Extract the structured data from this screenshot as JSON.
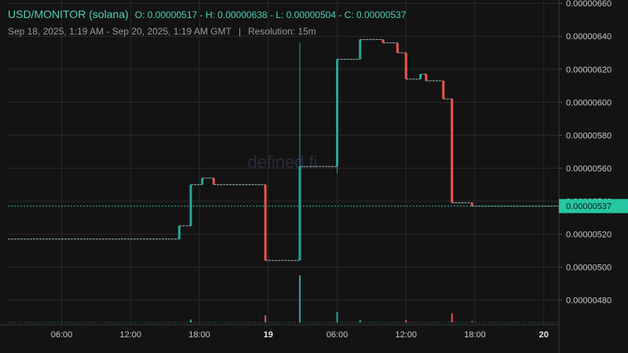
{
  "header": {
    "symbol": "USD/MONITOR (solana)",
    "ohlc": "O: 0.00000517 - H: 0.00000638 - L: 0.00000504 - C: 0.00000537",
    "range": "Sep 18, 2025, 1:19 AM - Sep 20, 2025, 1:19 AM GMT",
    "separator": "|",
    "resolution": "Resolution: 15m"
  },
  "watermark": "defined.fi",
  "colors": {
    "background": "#131313",
    "up": "#26a69a",
    "down": "#ef5350",
    "grid": "#2a2a2a",
    "price_tag": "#26c6a2"
  },
  "chart_data": {
    "type": "candlestick",
    "y_axis_side": "right",
    "ylim": [
      4.65e-06,
      6.62e-06
    ],
    "y_ticks": [
      {
        "v": 6.6e-06,
        "label": "0.00000660"
      },
      {
        "v": 6.4e-06,
        "label": "0.00000640"
      },
      {
        "v": 6.2e-06,
        "label": "0.00000620"
      },
      {
        "v": 6e-06,
        "label": "0.00000600"
      },
      {
        "v": 5.8e-06,
        "label": "0.00000580"
      },
      {
        "v": 5.6e-06,
        "label": "0.00000560"
      },
      {
        "v": 5.4e-06,
        "label": "0.00000540"
      },
      {
        "v": 5.2e-06,
        "label": "0.00000520"
      },
      {
        "v": 5e-06,
        "label": "0.00000500"
      },
      {
        "v": 4.8e-06,
        "label": "0.00000480"
      }
    ],
    "x_range_hours": [
      1.3167,
      49.3167
    ],
    "x_ticks": [
      {
        "h": 6,
        "label": "06:00",
        "bold": false
      },
      {
        "h": 12,
        "label": "12:00",
        "bold": false
      },
      {
        "h": 18,
        "label": "18:00",
        "bold": false
      },
      {
        "h": 24,
        "label": "19",
        "bold": true
      },
      {
        "h": 30,
        "label": "06:00",
        "bold": false
      },
      {
        "h": 36,
        "label": "12:00",
        "bold": false
      },
      {
        "h": 42,
        "label": "18:00",
        "bold": false
      },
      {
        "h": 48,
        "label": "20",
        "bold": true
      }
    ],
    "current_price": {
      "value": 5.37e-06,
      "label": "0.00000537"
    },
    "segments": [
      {
        "h0": 1.3167,
        "h1": 16.25,
        "price": 5.17e-06
      },
      {
        "h0": 16.25,
        "h1": 17.25,
        "price": 5.25e-06
      },
      {
        "h0": 17.25,
        "h1": 18.25,
        "price": 5.5e-06
      },
      {
        "h0": 18.25,
        "h1": 19.25,
        "price": 5.54e-06
      },
      {
        "h0": 19.25,
        "h1": 23.75,
        "price": 5.5e-06
      },
      {
        "h0": 23.75,
        "h1": 26.75,
        "price": 5.04e-06
      },
      {
        "h0": 26.75,
        "h1": 30,
        "price": 5.61e-06
      },
      {
        "h0": 30,
        "h1": 32,
        "price": 6.26e-06
      },
      {
        "h0": 32,
        "h1": 34,
        "price": 6.38e-06
      },
      {
        "h0": 34,
        "h1": 35.25,
        "price": 6.36e-06
      },
      {
        "h0": 35.25,
        "h1": 36,
        "price": 6.3e-06
      },
      {
        "h0": 36,
        "h1": 37.25,
        "price": 6.14e-06
      },
      {
        "h0": 37.25,
        "h1": 37.75,
        "price": 6.17e-06
      },
      {
        "h0": 37.75,
        "h1": 39.25,
        "price": 6.13e-06
      },
      {
        "h0": 39.25,
        "h1": 40,
        "price": 6.02e-06
      },
      {
        "h0": 40,
        "h1": 41.75,
        "price": 5.39e-06
      },
      {
        "h0": 41.75,
        "h1": 49.3167,
        "price": 5.37e-06
      }
    ],
    "candles": [
      {
        "h": 16.25,
        "o": 5.17e-06,
        "c": 5.25e-06,
        "hi": 5.25e-06,
        "lo": 5.17e-06
      },
      {
        "h": 17.25,
        "o": 5.25e-06,
        "c": 5.5e-06,
        "hi": 5.5e-06,
        "lo": 5.25e-06
      },
      {
        "h": 18.25,
        "o": 5.5e-06,
        "c": 5.54e-06,
        "hi": 5.54e-06,
        "lo": 5.5e-06
      },
      {
        "h": 19.25,
        "o": 5.54e-06,
        "c": 5.5e-06,
        "hi": 5.54e-06,
        "lo": 5.5e-06
      },
      {
        "h": 23.75,
        "o": 5.5e-06,
        "c": 5.04e-06,
        "hi": 5.5e-06,
        "lo": 5.04e-06
      },
      {
        "h": 26.75,
        "o": 5.04e-06,
        "c": 5.61e-06,
        "hi": 6.36e-06,
        "lo": 5.04e-06
      },
      {
        "h": 30,
        "o": 5.61e-06,
        "c": 6.26e-06,
        "hi": 6.26e-06,
        "lo": 5.57e-06
      },
      {
        "h": 32,
        "o": 6.26e-06,
        "c": 6.38e-06,
        "hi": 6.38e-06,
        "lo": 6.26e-06
      },
      {
        "h": 34,
        "o": 6.38e-06,
        "c": 6.36e-06,
        "hi": 6.38e-06,
        "lo": 6.36e-06
      },
      {
        "h": 35.25,
        "o": 6.36e-06,
        "c": 6.3e-06,
        "hi": 6.36e-06,
        "lo": 6.3e-06
      },
      {
        "h": 36,
        "o": 6.3e-06,
        "c": 6.14e-06,
        "hi": 6.3e-06,
        "lo": 6.14e-06
      },
      {
        "h": 37.25,
        "o": 6.14e-06,
        "c": 6.17e-06,
        "hi": 6.17e-06,
        "lo": 6.14e-06
      },
      {
        "h": 37.75,
        "o": 6.17e-06,
        "c": 6.13e-06,
        "hi": 6.17e-06,
        "lo": 6.13e-06
      },
      {
        "h": 39.25,
        "o": 6.13e-06,
        "c": 6.02e-06,
        "hi": 6.13e-06,
        "lo": 6.02e-06
      },
      {
        "h": 40,
        "o": 6.02e-06,
        "c": 5.39e-06,
        "hi": 6.02e-06,
        "lo": 5.39e-06
      },
      {
        "h": 41.75,
        "o": 5.39e-06,
        "c": 5.37e-06,
        "hi": 5.39e-06,
        "lo": 5.37e-06
      }
    ],
    "volume_max": 1.0,
    "volume": [
      {
        "h": 17.25,
        "v": 0.06,
        "dir": "up"
      },
      {
        "h": 23.75,
        "v": 0.15,
        "dir": "down"
      },
      {
        "h": 26.75,
        "v": 1.0,
        "dir": "up"
      },
      {
        "h": 30,
        "v": 0.22,
        "dir": "up"
      },
      {
        "h": 32,
        "v": 0.05,
        "dir": "up"
      },
      {
        "h": 36,
        "v": 0.05,
        "dir": "down"
      },
      {
        "h": 40,
        "v": 0.19,
        "dir": "down"
      },
      {
        "h": 41.75,
        "v": 0.03,
        "dir": "down"
      }
    ]
  }
}
